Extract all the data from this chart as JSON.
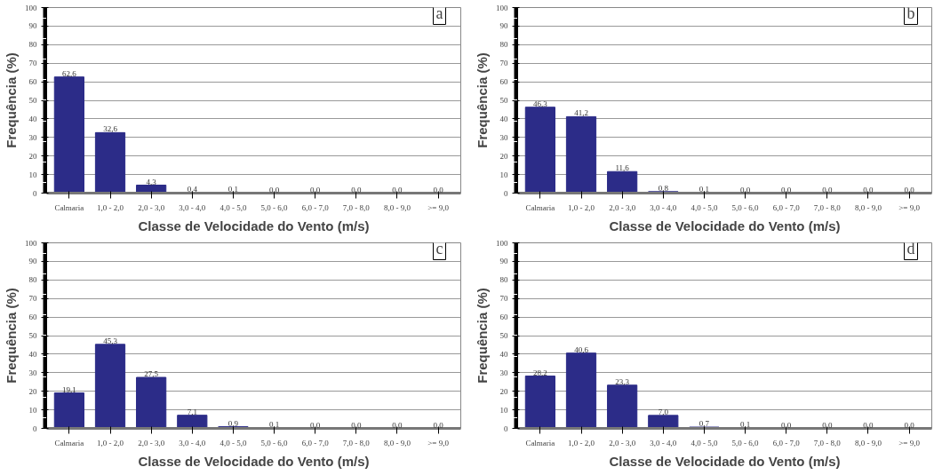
{
  "chart_data": [
    {
      "type": "bar",
      "categories": [
        "Calmaria",
        "1,0 - 2,0",
        "2,0 - 3,0",
        "3,0 - 4,0",
        "4,0 - 5,0",
        "5,0 - 6,0",
        "6,0 - 7,0",
        "7,0 - 8,0",
        "8,0 - 9,0",
        ">= 9,0"
      ],
      "values": [
        62.6,
        32.6,
        4.3,
        0.4,
        0.1,
        0.0,
        0.0,
        0.0,
        0.0,
        0.0
      ],
      "value_labels": [
        "62,6",
        "32,6",
        "4,3",
        "0,4",
        "0,1",
        "0,0",
        "0,0",
        "0,0",
        "0,0",
        "0,0"
      ],
      "color": "#2c2c88",
      "xlabel": "Classe de Velocidade do Vento (m/s)",
      "ylabel": "Frequência (%)",
      "ylim": [
        0,
        100
      ],
      "yticks": [
        0,
        10,
        20,
        30,
        40,
        50,
        60,
        70,
        80,
        90,
        100
      ],
      "grid": "y",
      "annotations": [
        "a"
      ]
    },
    {
      "type": "bar",
      "categories": [
        "Calmaria",
        "1,0 - 2,0",
        "2,0 - 3,0",
        "3,0 - 4,0",
        "4,0 - 5,0",
        "5,0 - 6,0",
        "6,0 - 7,0",
        "7,0 - 8,0",
        "8,0 - 9,0",
        ">= 9,0"
      ],
      "values": [
        46.3,
        41.2,
        11.6,
        0.8,
        0.1,
        0.0,
        0.0,
        0.0,
        0.0,
        0.0
      ],
      "value_labels": [
        "46,3",
        "41,2",
        "11,6",
        "0,8",
        "0,1",
        "0,0",
        "0,0",
        "0,0",
        "0,0",
        "0,0"
      ],
      "color": "#2c2c88",
      "xlabel": "Classe de Velocidade do Vento (m/s)",
      "ylabel": "Frequência (%)",
      "ylim": [
        0,
        100
      ],
      "yticks": [
        0,
        10,
        20,
        30,
        40,
        50,
        60,
        70,
        80,
        90,
        100
      ],
      "grid": "y",
      "annotations": [
        "b"
      ]
    },
    {
      "type": "bar",
      "categories": [
        "Calmaria",
        "1,0 - 2,0",
        "2,0 - 3,0",
        "3,0 - 4,0",
        "4,0 - 5,0",
        "5,0 - 6,0",
        "6,0 - 7,0",
        "7,0 - 8,0",
        "8,0 - 9,0",
        ">= 9,0"
      ],
      "values": [
        19.1,
        45.3,
        27.5,
        7.1,
        0.9,
        0.1,
        0.0,
        0.0,
        0.0,
        0.0
      ],
      "value_labels": [
        "19,1",
        "45,3",
        "27,5",
        "7,1",
        "0,9",
        "0,1",
        "0,0",
        "0,0",
        "0,0",
        "0,0"
      ],
      "color": "#2c2c88",
      "xlabel": "Classe de Velocidade do Vento (m/s)",
      "ylabel": "Frequência (%)",
      "ylim": [
        0,
        100
      ],
      "yticks": [
        0,
        10,
        20,
        30,
        40,
        50,
        60,
        70,
        80,
        90,
        100
      ],
      "grid": "y",
      "annotations": [
        "c"
      ]
    },
    {
      "type": "bar",
      "categories": [
        "Calmaria",
        "1,0 - 2,0",
        "2,0 - 3,0",
        "3,0 - 4,0",
        "4,0 - 5,0",
        "5,0 - 6,0",
        "6,0 - 7,0",
        "7,0 - 8,0",
        "8,0 - 9,0",
        ">= 9,0"
      ],
      "values": [
        28.2,
        40.6,
        23.3,
        7.0,
        0.7,
        0.1,
        0.0,
        0.0,
        0.0,
        0.0
      ],
      "value_labels": [
        "28,2",
        "40,6",
        "23,3",
        "7,0",
        "0,7",
        "0,1",
        "0,0",
        "0,0",
        "0,0",
        "0,0"
      ],
      "color": "#2c2c88",
      "xlabel": "Classe de Velocidade do Vento (m/s)",
      "ylabel": "Frequência (%)",
      "ylim": [
        0,
        100
      ],
      "yticks": [
        0,
        10,
        20,
        30,
        40,
        50,
        60,
        70,
        80,
        90,
        100
      ],
      "grid": "y",
      "annotations": [
        "d"
      ]
    }
  ]
}
